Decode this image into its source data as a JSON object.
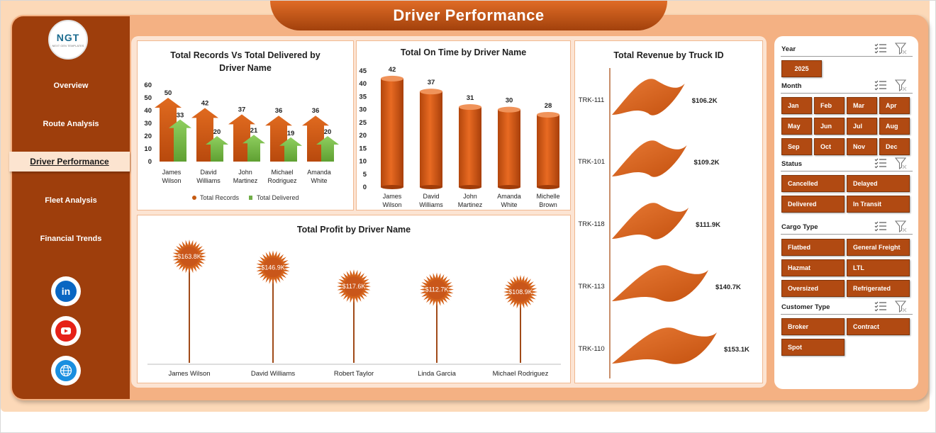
{
  "title": "Driver Performance",
  "logo": {
    "text": "NGT",
    "subtext": "NEXT GEN TEMPLATES"
  },
  "nav": [
    "Overview",
    "Route Analysis",
    "Driver Performance",
    "Fleet Analysis",
    "Financial Trends"
  ],
  "social_icons": [
    "linkedin-icon",
    "youtube-icon",
    "globe-icon"
  ],
  "colors": {
    "accent": "#c55a11",
    "green": "#70ad47",
    "sidebar": "#9e3e0c"
  },
  "charts": {
    "records": {
      "title_line1": "Total Records Vs Total Delivered by",
      "title_line2": "Driver Name",
      "yticks": [
        "60",
        "50",
        "40",
        "30",
        "20",
        "10",
        "0"
      ],
      "drivers": [
        {
          "line1": "James",
          "line2": "Wilson",
          "records": "50",
          "delivered": "33"
        },
        {
          "line1": "David",
          "line2": "Williams",
          "records": "42",
          "delivered": "20"
        },
        {
          "line1": "John",
          "line2": "Martinez",
          "records": "37",
          "delivered": "21"
        },
        {
          "line1": "Michael",
          "line2": "Rodriguez",
          "records": "36",
          "delivered": "19"
        },
        {
          "line1": "Amanda",
          "line2": "White",
          "records": "36",
          "delivered": "20"
        }
      ],
      "legend": [
        "Total Records",
        "Total Delivered"
      ]
    },
    "ontime": {
      "title": "Total On Time by Driver Name",
      "yticks": [
        "45",
        "40",
        "35",
        "30",
        "25",
        "20",
        "15",
        "10",
        "5",
        "0"
      ],
      "drivers": [
        {
          "line1": "James",
          "line2": "Wilson",
          "value": "42"
        },
        {
          "line1": "David",
          "line2": "Williams",
          "value": "37"
        },
        {
          "line1": "John",
          "line2": "Martinez",
          "value": "31"
        },
        {
          "line1": "Amanda",
          "line2": "White",
          "value": "30"
        },
        {
          "line1": "Michelle",
          "line2": "Brown",
          "value": "28"
        }
      ]
    },
    "profit": {
      "title": "Total Profit by Driver Name",
      "drivers": [
        {
          "name": "James Wilson",
          "value": "$163.8K"
        },
        {
          "name": "David Williams",
          "value": "$146.9K"
        },
        {
          "name": "Robert Taylor",
          "value": "$117.6K"
        },
        {
          "name": "Linda Garcia",
          "value": "$112.7K"
        },
        {
          "name": "Michael Rodriguez",
          "value": "$108.9K"
        }
      ]
    },
    "revenue": {
      "title": "Total Revenue  by Truck ID",
      "trucks": [
        {
          "id": "TRK-111",
          "value": "$106.2K"
        },
        {
          "id": "TRK-101",
          "value": "$109.2K"
        },
        {
          "id": "TRK-118",
          "value": "$111.9K"
        },
        {
          "id": "TRK-113",
          "value": "$140.7K"
        },
        {
          "id": "TRK-110",
          "value": "$153.1K"
        }
      ]
    }
  },
  "chart_data": [
    {
      "type": "bar",
      "title": "Total Records Vs Total Delivered by Driver Name",
      "categories": [
        "James Wilson",
        "David Williams",
        "John Martinez",
        "Michael Rodriguez",
        "Amanda White"
      ],
      "series": [
        {
          "name": "Total Records",
          "values": [
            50,
            42,
            37,
            36,
            36
          ]
        },
        {
          "name": "Total Delivered",
          "values": [
            33,
            20,
            21,
            19,
            20
          ]
        }
      ],
      "ylim": [
        0,
        60
      ],
      "legend": "bottom"
    },
    {
      "type": "bar",
      "title": "Total On Time by Driver Name",
      "categories": [
        "James Wilson",
        "David Williams",
        "John Martinez",
        "Amanda White",
        "Michelle Brown"
      ],
      "values": [
        42,
        37,
        31,
        30,
        28
      ],
      "ylim": [
        0,
        45
      ]
    },
    {
      "type": "bar",
      "title": "Total Profit by Driver Name",
      "categories": [
        "James Wilson",
        "David Williams",
        "Robert Taylor",
        "Linda Garcia",
        "Michael Rodriguez"
      ],
      "values": [
        163.8,
        146.9,
        117.6,
        112.7,
        108.9
      ]
    },
    {
      "type": "bar",
      "title": "Total Revenue  by Truck ID",
      "categories": [
        "TRK-111",
        "TRK-101",
        "TRK-118",
        "TRK-113",
        "TRK-110"
      ],
      "values": [
        106.2,
        109.2,
        111.9,
        140.7,
        153.1
      ]
    }
  ],
  "filters": {
    "year": {
      "label": "Year",
      "options": [
        "2025"
      ]
    },
    "month": {
      "label": "Month",
      "options": [
        "Jan",
        "Feb",
        "Mar",
        "Apr",
        "May",
        "Jun",
        "Jul",
        "Aug",
        "Sep",
        "Oct",
        "Nov",
        "Dec"
      ]
    },
    "status": {
      "label": "Status",
      "options": [
        "Cancelled",
        "Delayed",
        "Delivered",
        "In Transit"
      ]
    },
    "cargo": {
      "label": "Cargo Type",
      "options": [
        "Flatbed",
        "General Freight",
        "Hazmat",
        "LTL",
        "Oversized",
        "Refrigerated"
      ]
    },
    "customer": {
      "label": "Customer Type",
      "options": [
        "Broker",
        "Contract",
        "Spot"
      ]
    }
  }
}
